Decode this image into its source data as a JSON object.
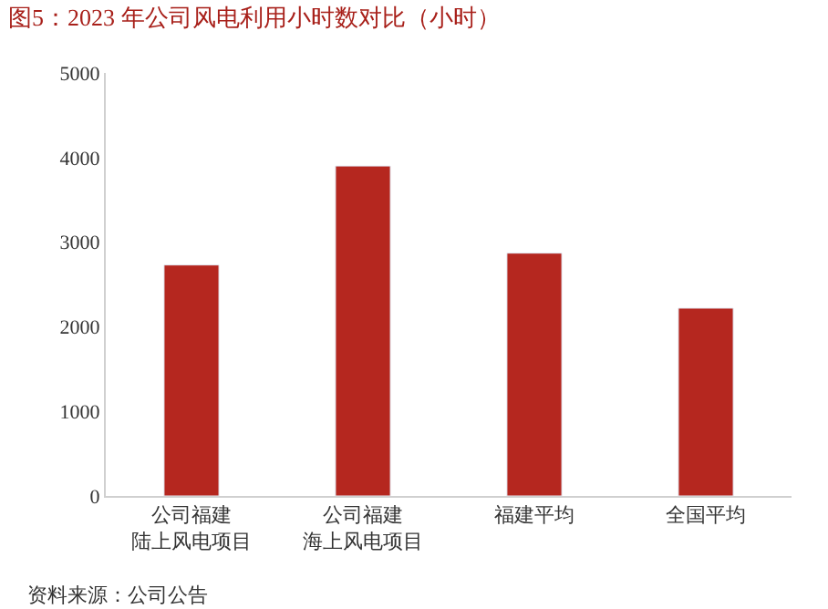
{
  "chart_data": {
    "type": "bar",
    "title": "图5：2023 年公司风电利用小时数对比（小时）",
    "categories": [
      "公司福建陆上风电项目",
      "公司福建海上风电项目",
      "福建平均",
      "全国平均"
    ],
    "values": [
      2730,
      3900,
      2870,
      2220
    ],
    "color": "#b5271f",
    "ylim": [
      0,
      5000
    ],
    "yticks": [
      0,
      1000,
      2000,
      3000,
      4000,
      5000
    ],
    "legend": false,
    "annotations": [
      "资料来源：公司公告"
    ]
  }
}
